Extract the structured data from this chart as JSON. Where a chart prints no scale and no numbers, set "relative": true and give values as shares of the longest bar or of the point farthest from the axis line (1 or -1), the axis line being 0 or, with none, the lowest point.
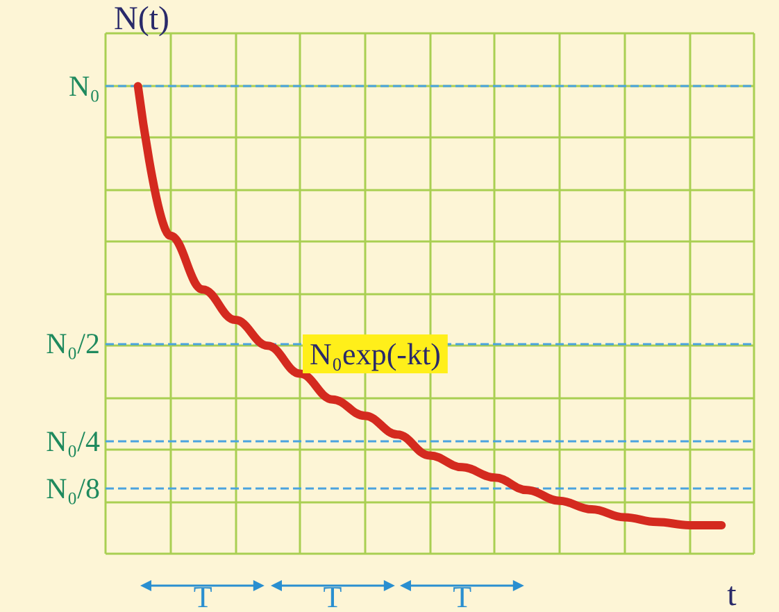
{
  "chart_data": {
    "type": "line",
    "xlabel": "t",
    "ylabel": "N(t)",
    "relative": true,
    "categories": [
      null,
      null,
      null,
      "T",
      null,
      null,
      null,
      "T",
      null,
      null,
      null,
      "T",
      null,
      null,
      null,
      null,
      null,
      null,
      null,
      null,
      null
    ],
    "series": [
      {
        "color": "#d42a1f",
        "values": [
          null,
          1,
          0.68,
          0.565,
          0.5,
          0.445,
          0.385,
          0.33,
          0.295,
          0.255,
          0.21,
          0.185,
          0.163,
          0.136,
          0.113,
          0.095,
          0.078,
          0.068,
          0.061,
          0.061,
          null
        ]
      }
    ],
    "grid": true,
    "marker": "none",
    "line_style": "solid",
    "ref_lines": [
      {
        "axis": "y",
        "value": 1,
        "label": "N₀",
        "line_style": "dashed",
        "color": "#4aa3df"
      },
      {
        "axis": "y",
        "value": 0.445,
        "label": "N₀/2",
        "line_style": "dashed",
        "color": "#4aa3df"
      },
      {
        "axis": "y",
        "value": 0.243,
        "label": "N₀/4",
        "line_style": "dashed",
        "color": "#4aa3df"
      },
      {
        "axis": "y",
        "value": 0.136,
        "label": "N₀/8",
        "line_style": "dashed",
        "color": "#4aa3df"
      }
    ],
    "annotations": [
      "N₀exp(-kt)"
    ]
  }
}
